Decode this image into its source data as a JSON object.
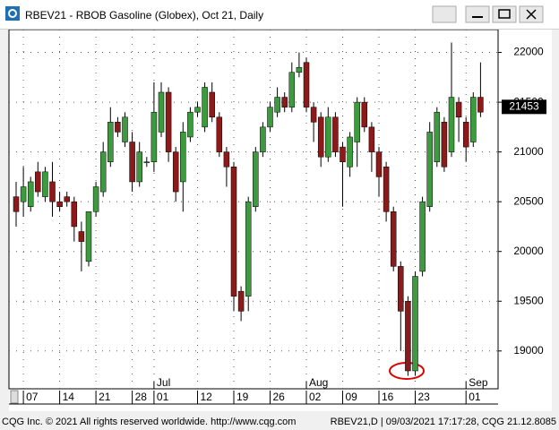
{
  "window": {
    "title": "RBEV21 - RBOB Gasoline (Globex), Oct 21, Daily"
  },
  "footer": {
    "left": "CQG Inc. © 2021 All rights reserved worldwide. http://www.cqg.com",
    "right": "RBEV21,D | 09/03/2021 17:17:28, CQG 21.12.8085"
  },
  "chart_data": {
    "type": "candlestick",
    "categories": [
      null,
      "07",
      null,
      null,
      null,
      null,
      "14",
      null,
      null,
      null,
      null,
      "21",
      null,
      null,
      null,
      null,
      "28",
      null,
      null,
      "01",
      null,
      null,
      null,
      null,
      null,
      "12",
      null,
      null,
      null,
      null,
      "19",
      null,
      null,
      null,
      null,
      "26",
      null,
      null,
      null,
      null,
      "02",
      null,
      null,
      null,
      null,
      "09",
      null,
      null,
      null,
      null,
      "16",
      null,
      null,
      null,
      null,
      "23",
      null,
      null,
      null,
      null,
      null,
      null,
      "01",
      null,
      null
    ],
    "months": [
      null,
      null,
      null,
      null,
      null,
      null,
      null,
      null,
      null,
      null,
      null,
      null,
      null,
      null,
      null,
      null,
      null,
      null,
      null,
      "Jul",
      null,
      null,
      null,
      null,
      null,
      null,
      null,
      null,
      null,
      null,
      null,
      null,
      null,
      null,
      null,
      null,
      null,
      null,
      null,
      null,
      "Aug",
      null,
      null,
      null,
      null,
      null,
      null,
      null,
      null,
      null,
      null,
      null,
      null,
      null,
      null,
      null,
      null,
      null,
      null,
      null,
      null,
      null,
      "Sep",
      null,
      null
    ],
    "open": [
      20550,
      20500,
      20450,
      20800,
      20550,
      20700,
      20500,
      20550,
      20500,
      20200,
      19900,
      20400,
      20600,
      20900,
      21300,
      21100,
      21100,
      20700,
      20900,
      20900,
      21200,
      21600,
      21000,
      20700,
      21150,
      21400,
      21250,
      21600,
      21350,
      21000,
      20850,
      19600,
      19550,
      20450,
      21000,
      21250,
      21400,
      21550,
      21450,
      21800,
      21900,
      21450,
      21350,
      20950,
      21350,
      21050,
      20850,
      21100,
      21500,
      21250,
      21000,
      20850,
      20400,
      19850,
      19500,
      18800,
      19800,
      20450,
      20900,
      21300,
      21000,
      21500,
      21300,
      21100,
      21550
    ],
    "high": [
      20700,
      20850,
      20750,
      20900,
      20850,
      20900,
      20600,
      20600,
      20550,
      20300,
      20400,
      20700,
      21100,
      21450,
      21350,
      21400,
      21200,
      21100,
      20950,
      21700,
      21700,
      21650,
      21050,
      21300,
      21450,
      21500,
      21700,
      21700,
      21400,
      21050,
      20900,
      19650,
      20550,
      21050,
      21300,
      21500,
      21650,
      21600,
      21900,
      22000,
      21950,
      21500,
      21400,
      21450,
      21400,
      21100,
      21200,
      21550,
      21550,
      21300,
      21050,
      20900,
      20450,
      19900,
      19550,
      19800,
      20550,
      21300,
      21450,
      21350,
      22100,
      21550,
      21350,
      21600,
      21900
    ],
    "low": [
      20250,
      20350,
      20400,
      20550,
      20500,
      20350,
      20400,
      20450,
      20100,
      19800,
      19850,
      20350,
      20550,
      20850,
      21150,
      21050,
      20600,
      20650,
      20850,
      20800,
      21150,
      20900,
      20500,
      20400,
      21100,
      21350,
      21200,
      21300,
      20950,
      20650,
      19400,
      19300,
      19400,
      20400,
      20950,
      21200,
      21350,
      21400,
      21400,
      21750,
      21400,
      21100,
      20850,
      20900,
      20950,
      20450,
      20750,
      20850,
      21200,
      20800,
      20550,
      20300,
      19800,
      19000,
      18750,
      18750,
      19750,
      20400,
      20850,
      20800,
      20950,
      21100,
      20900,
      21050,
      21350
    ],
    "close": [
      20400,
      20650,
      20700,
      20600,
      20800,
      20500,
      20450,
      20500,
      20250,
      20100,
      20400,
      20650,
      21000,
      21300,
      21200,
      21350,
      20700,
      21000,
      20900,
      21400,
      21600,
      21000,
      20600,
      21200,
      21400,
      21450,
      21650,
      21350,
      21000,
      20850,
      19550,
      19400,
      20500,
      21000,
      21250,
      21450,
      21550,
      21450,
      21800,
      21850,
      21450,
      21300,
      20950,
      21350,
      21000,
      20900,
      21150,
      21500,
      21250,
      21000,
      20750,
      20400,
      19850,
      19400,
      18800,
      19750,
      20500,
      21200,
      21400,
      20850,
      21550,
      21350,
      21050,
      21550,
      21400
    ],
    "up_color": "#3c9b3c",
    "down_color": "#8b1a1a",
    "ylim": [
      18620,
      22230
    ],
    "yticks": [
      19000,
      19500,
      20000,
      20500,
      21000,
      21500,
      22000
    ],
    "grid": true,
    "last_price": 21453
  }
}
